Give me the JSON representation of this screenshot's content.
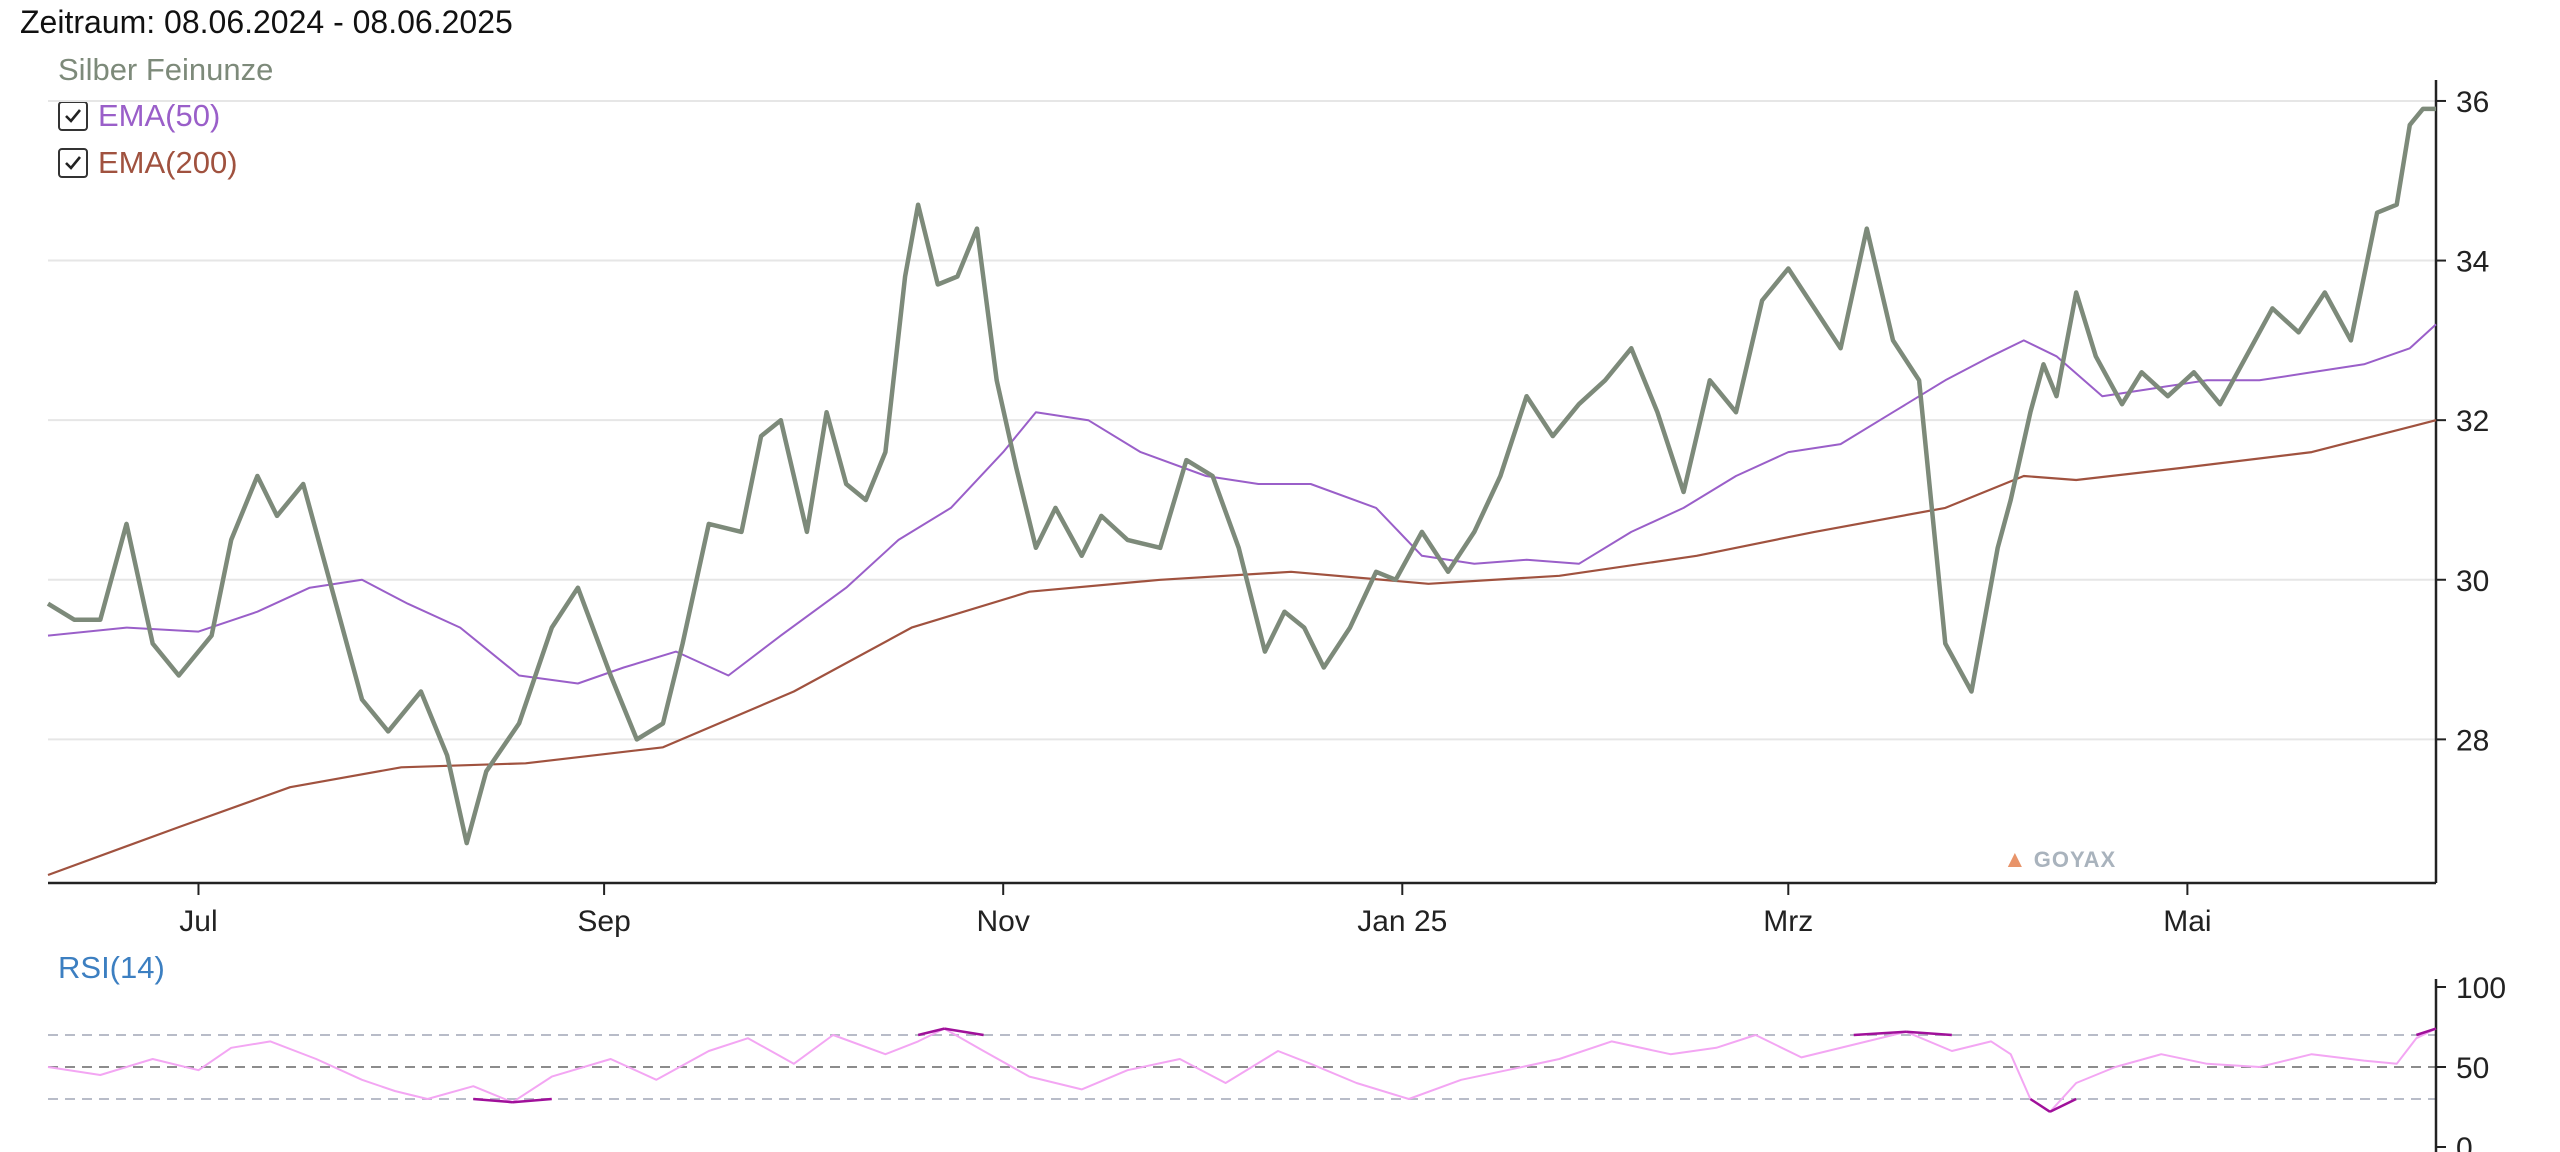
{
  "header": {
    "period": "Zeitraum: 08.06.2024 - 08.06.2025"
  },
  "legend": {
    "instrument": "Silber Feinunze",
    "ema50": {
      "label": "EMA(50)",
      "checked": true,
      "color": "#9a5fc9"
    },
    "ema200": {
      "label": "EMA(200)",
      "checked": true,
      "color": "#a0523f"
    }
  },
  "watermark": "GOYAX",
  "rsi_panel": {
    "title": "RSI(14)"
  },
  "colors": {
    "price": "#7d8a7a",
    "rsi": "#f3a6f3",
    "rsi_extreme": "#a0109a",
    "grid": "#e6e6e6"
  },
  "chart_data": [
    {
      "type": "line",
      "title": "Silber Feinunze",
      "x_tick_labels": [
        "Jul",
        "Sep",
        "Nov",
        "Jan 25",
        "Mrz",
        "Mai"
      ],
      "x_tick_dates": [
        "2024-07-01",
        "2024-09-01",
        "2024-11-01",
        "2025-01-01",
        "2025-03-01",
        "2025-05-01"
      ],
      "xlim": [
        "2024-06-08",
        "2025-06-08"
      ],
      "ylim": [
        26.2,
        36.2
      ],
      "y_ticks": [
        28,
        30,
        32,
        34,
        36
      ],
      "y_axis_position": "right",
      "grid": true,
      "series": [
        {
          "name": "Silber Feinunze",
          "x": [
            "2024-06-08",
            "2024-06-12",
            "2024-06-16",
            "2024-06-20",
            "2024-06-24",
            "2024-06-28",
            "2024-07-03",
            "2024-07-06",
            "2024-07-10",
            "2024-07-13",
            "2024-07-17",
            "2024-07-22",
            "2024-07-26",
            "2024-07-30",
            "2024-08-04",
            "2024-08-08",
            "2024-08-11",
            "2024-08-14",
            "2024-08-19",
            "2024-08-24",
            "2024-08-28",
            "2024-09-02",
            "2024-09-06",
            "2024-09-10",
            "2024-09-13",
            "2024-09-17",
            "2024-09-22",
            "2024-09-25",
            "2024-09-28",
            "2024-10-02",
            "2024-10-05",
            "2024-10-08",
            "2024-10-11",
            "2024-10-14",
            "2024-10-17",
            "2024-10-19",
            "2024-10-22",
            "2024-10-25",
            "2024-10-28",
            "2024-10-31",
            "2024-11-03",
            "2024-11-06",
            "2024-11-09",
            "2024-11-13",
            "2024-11-16",
            "2024-11-20",
            "2024-11-25",
            "2024-11-29",
            "2024-12-03",
            "2024-12-07",
            "2024-12-11",
            "2024-12-14",
            "2024-12-17",
            "2024-12-20",
            "2024-12-24",
            "2024-12-28",
            "2024-12-31",
            "2025-01-04",
            "2025-01-08",
            "2025-01-12",
            "2025-01-16",
            "2025-01-20",
            "2025-01-24",
            "2025-01-28",
            "2025-02-01",
            "2025-02-05",
            "2025-02-09",
            "2025-02-13",
            "2025-02-17",
            "2025-02-21",
            "2025-02-25",
            "2025-03-01",
            "2025-03-05",
            "2025-03-09",
            "2025-03-13",
            "2025-03-17",
            "2025-03-21",
            "2025-03-25",
            "2025-03-29",
            "2025-04-02",
            "2025-04-04",
            "2025-04-07",
            "2025-04-09",
            "2025-04-11",
            "2025-04-14",
            "2025-04-17",
            "2025-04-21",
            "2025-04-24",
            "2025-04-28",
            "2025-05-02",
            "2025-05-06",
            "2025-05-10",
            "2025-05-14",
            "2025-05-18",
            "2025-05-22",
            "2025-05-26",
            "2025-05-30",
            "2025-06-02",
            "2025-06-04",
            "2025-06-06",
            "2025-06-08"
          ],
          "y": [
            29.7,
            29.5,
            29.5,
            30.7,
            29.2,
            28.8,
            29.3,
            30.5,
            31.3,
            30.8,
            31.2,
            29.7,
            28.5,
            28.1,
            28.6,
            27.8,
            26.7,
            27.6,
            28.2,
            29.4,
            29.9,
            28.8,
            28.0,
            28.2,
            29.2,
            30.7,
            30.6,
            31.8,
            32.0,
            30.6,
            32.1,
            31.2,
            31.0,
            31.6,
            33.8,
            34.7,
            33.7,
            33.8,
            34.4,
            32.5,
            31.4,
            30.4,
            30.9,
            30.3,
            30.8,
            30.5,
            30.4,
            31.5,
            31.3,
            30.4,
            29.1,
            29.6,
            29.4,
            28.9,
            29.4,
            30.1,
            30.0,
            30.6,
            30.1,
            30.6,
            31.3,
            32.3,
            31.8,
            32.2,
            32.5,
            32.9,
            32.1,
            31.1,
            32.5,
            32.1,
            33.5,
            33.9,
            33.4,
            32.9,
            34.4,
            33.0,
            32.5,
            29.2,
            28.6,
            30.4,
            31.0,
            32.1,
            32.7,
            32.3,
            33.6,
            32.8,
            32.2,
            32.6,
            32.3,
            32.6,
            32.2,
            32.8,
            33.4,
            33.1,
            33.6,
            33.0,
            34.6,
            34.7,
            35.7,
            35.9,
            35.9
          ]
        },
        {
          "name": "EMA(50)",
          "x": [
            "2024-06-08",
            "2024-06-20",
            "2024-07-01",
            "2024-07-10",
            "2024-07-18",
            "2024-07-26",
            "2024-08-02",
            "2024-08-10",
            "2024-08-19",
            "2024-08-28",
            "2024-09-04",
            "2024-09-12",
            "2024-09-20",
            "2024-09-28",
            "2024-10-08",
            "2024-10-16",
            "2024-10-24",
            "2024-11-01",
            "2024-11-06",
            "2024-11-14",
            "2024-11-22",
            "2024-12-02",
            "2024-12-10",
            "2024-12-18",
            "2024-12-28",
            "2025-01-04",
            "2025-01-12",
            "2025-01-20",
            "2025-01-28",
            "2025-02-05",
            "2025-02-13",
            "2025-02-21",
            "2025-03-01",
            "2025-03-09",
            "2025-03-17",
            "2025-03-25",
            "2025-04-01",
            "2025-04-06",
            "2025-04-11",
            "2025-04-18",
            "2025-04-26",
            "2025-05-04",
            "2025-05-12",
            "2025-05-20",
            "2025-05-28",
            "2025-06-04",
            "2025-06-08"
          ],
          "y": [
            29.3,
            29.4,
            29.35,
            29.6,
            29.9,
            30.0,
            29.7,
            29.4,
            28.8,
            28.7,
            28.9,
            29.1,
            28.8,
            29.3,
            29.9,
            30.5,
            30.9,
            31.6,
            32.1,
            32.0,
            31.6,
            31.3,
            31.2,
            31.2,
            30.9,
            30.3,
            30.2,
            30.25,
            30.2,
            30.6,
            30.9,
            31.3,
            31.6,
            31.7,
            32.1,
            32.5,
            32.8,
            33.0,
            32.8,
            32.3,
            32.4,
            32.5,
            32.5,
            32.6,
            32.7,
            32.9,
            33.2
          ]
        },
        {
          "name": "EMA(200)",
          "x": [
            "2024-06-08",
            "2024-06-28",
            "2024-07-15",
            "2024-08-01",
            "2024-08-20",
            "2024-09-10",
            "2024-09-30",
            "2024-10-18",
            "2024-11-05",
            "2024-11-25",
            "2024-12-15",
            "2025-01-05",
            "2025-01-25",
            "2025-02-15",
            "2025-03-05",
            "2025-03-25",
            "2025-04-06",
            "2025-04-14",
            "2025-04-30",
            "2025-05-20",
            "2025-06-08"
          ],
          "y": [
            26.3,
            26.9,
            27.4,
            27.65,
            27.7,
            27.9,
            28.6,
            29.4,
            29.85,
            30.0,
            30.1,
            29.95,
            30.05,
            30.3,
            30.6,
            30.9,
            31.3,
            31.25,
            31.4,
            31.6,
            32.0
          ]
        }
      ]
    },
    {
      "type": "line",
      "title": "RSI(14)",
      "xlim": [
        "2024-06-08",
        "2025-06-08"
      ],
      "ylim": [
        0,
        100
      ],
      "y_ticks": [
        0,
        50,
        100
      ],
      "reference_lines": [
        30,
        50,
        70
      ],
      "series": [
        {
          "name": "RSI(14)",
          "x": [
            "2024-06-08",
            "2024-06-16",
            "2024-06-24",
            "2024-07-01",
            "2024-07-06",
            "2024-07-12",
            "2024-07-19",
            "2024-07-26",
            "2024-07-31",
            "2024-08-05",
            "2024-08-12",
            "2024-08-18",
            "2024-08-24",
            "2024-09-02",
            "2024-09-09",
            "2024-09-17",
            "2024-09-23",
            "2024-09-30",
            "2024-10-06",
            "2024-10-14",
            "2024-10-19",
            "2024-10-23",
            "2024-10-29",
            "2024-11-05",
            "2024-11-13",
            "2024-11-20",
            "2024-11-28",
            "2024-12-05",
            "2024-12-13",
            "2024-12-18",
            "2024-12-25",
            "2025-01-02",
            "2025-01-10",
            "2025-01-17",
            "2025-01-25",
            "2025-02-02",
            "2025-02-11",
            "2025-02-18",
            "2025-02-24",
            "2025-03-03",
            "2025-03-11",
            "2025-03-19",
            "2025-03-26",
            "2025-04-01",
            "2025-04-04",
            "2025-04-07",
            "2025-04-10",
            "2025-04-14",
            "2025-04-20",
            "2025-04-27",
            "2025-05-04",
            "2025-05-12",
            "2025-05-20",
            "2025-05-28",
            "2025-06-02",
            "2025-06-05",
            "2025-06-08"
          ],
          "y": [
            50,
            45,
            55,
            48,
            62,
            66,
            55,
            42,
            35,
            30,
            38,
            28,
            44,
            55,
            42,
            60,
            68,
            52,
            70,
            58,
            66,
            74,
            60,
            44,
            36,
            48,
            55,
            40,
            60,
            52,
            40,
            30,
            42,
            48,
            55,
            66,
            58,
            62,
            70,
            56,
            64,
            72,
            60,
            66,
            58,
            30,
            22,
            40,
            50,
            58,
            52,
            50,
            58,
            54,
            52,
            68,
            74
          ]
        }
      ]
    }
  ]
}
